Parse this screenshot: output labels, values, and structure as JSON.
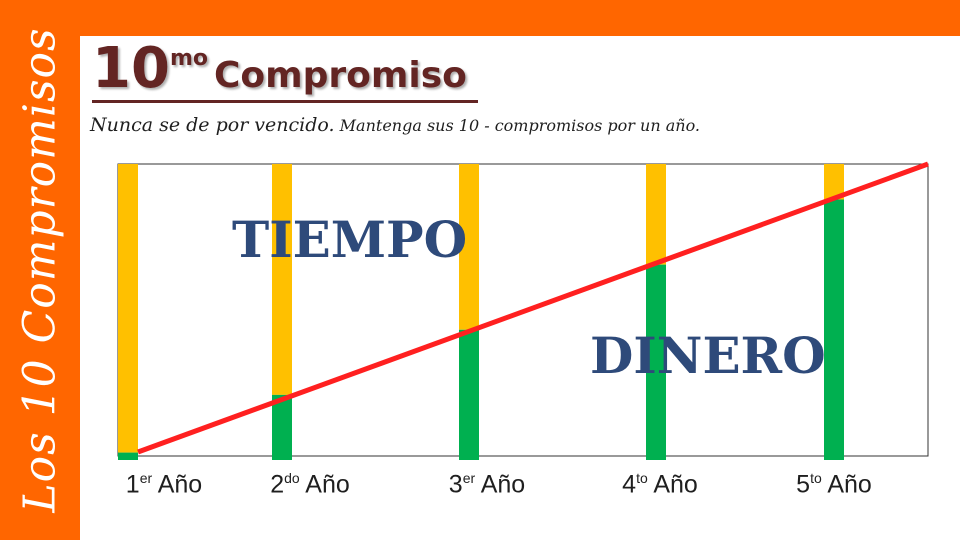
{
  "slide": {
    "vertical_title": "Los 10 Compromisos",
    "heading_number": "10",
    "heading_superscript": "mo",
    "heading_word": "Compromiso",
    "subtitle_part1": "Nunca se de por vencido.",
    "subtitle_part2": "Mantenga sus 10 - compromisos por un año.",
    "labels": {
      "tiempo": "TIEMPO",
      "dinero": "DINERO"
    },
    "colors": {
      "accent_orange": "#ff6600",
      "heading": "#632523",
      "bar_top": "#ffc000",
      "bar_bottom": "#00b050",
      "trend_line": "#ff2020",
      "label_blue": "#2e4a7a"
    }
  },
  "chart_data": {
    "type": "bar",
    "categories": [
      {
        "num": "1",
        "sup": "er",
        "word": "Año"
      },
      {
        "num": "2",
        "sup": "do",
        "word": "Año"
      },
      {
        "num": "3",
        "sup": "er",
        "word": "Año"
      },
      {
        "num": "4",
        "sup": "to",
        "word": "Año"
      },
      {
        "num": "5",
        "sup": "to",
        "word": "Año"
      }
    ],
    "series": [
      {
        "key": "dinero",
        "values": [
          2.5,
          22,
          44,
          66,
          88
        ]
      },
      {
        "key": "tiempo",
        "values": [
          97.5,
          78,
          56,
          34,
          12
        ]
      }
    ],
    "trend_line": {
      "from": 0,
      "to": 100
    },
    "ylim": [
      0,
      100
    ],
    "grid": false
  }
}
